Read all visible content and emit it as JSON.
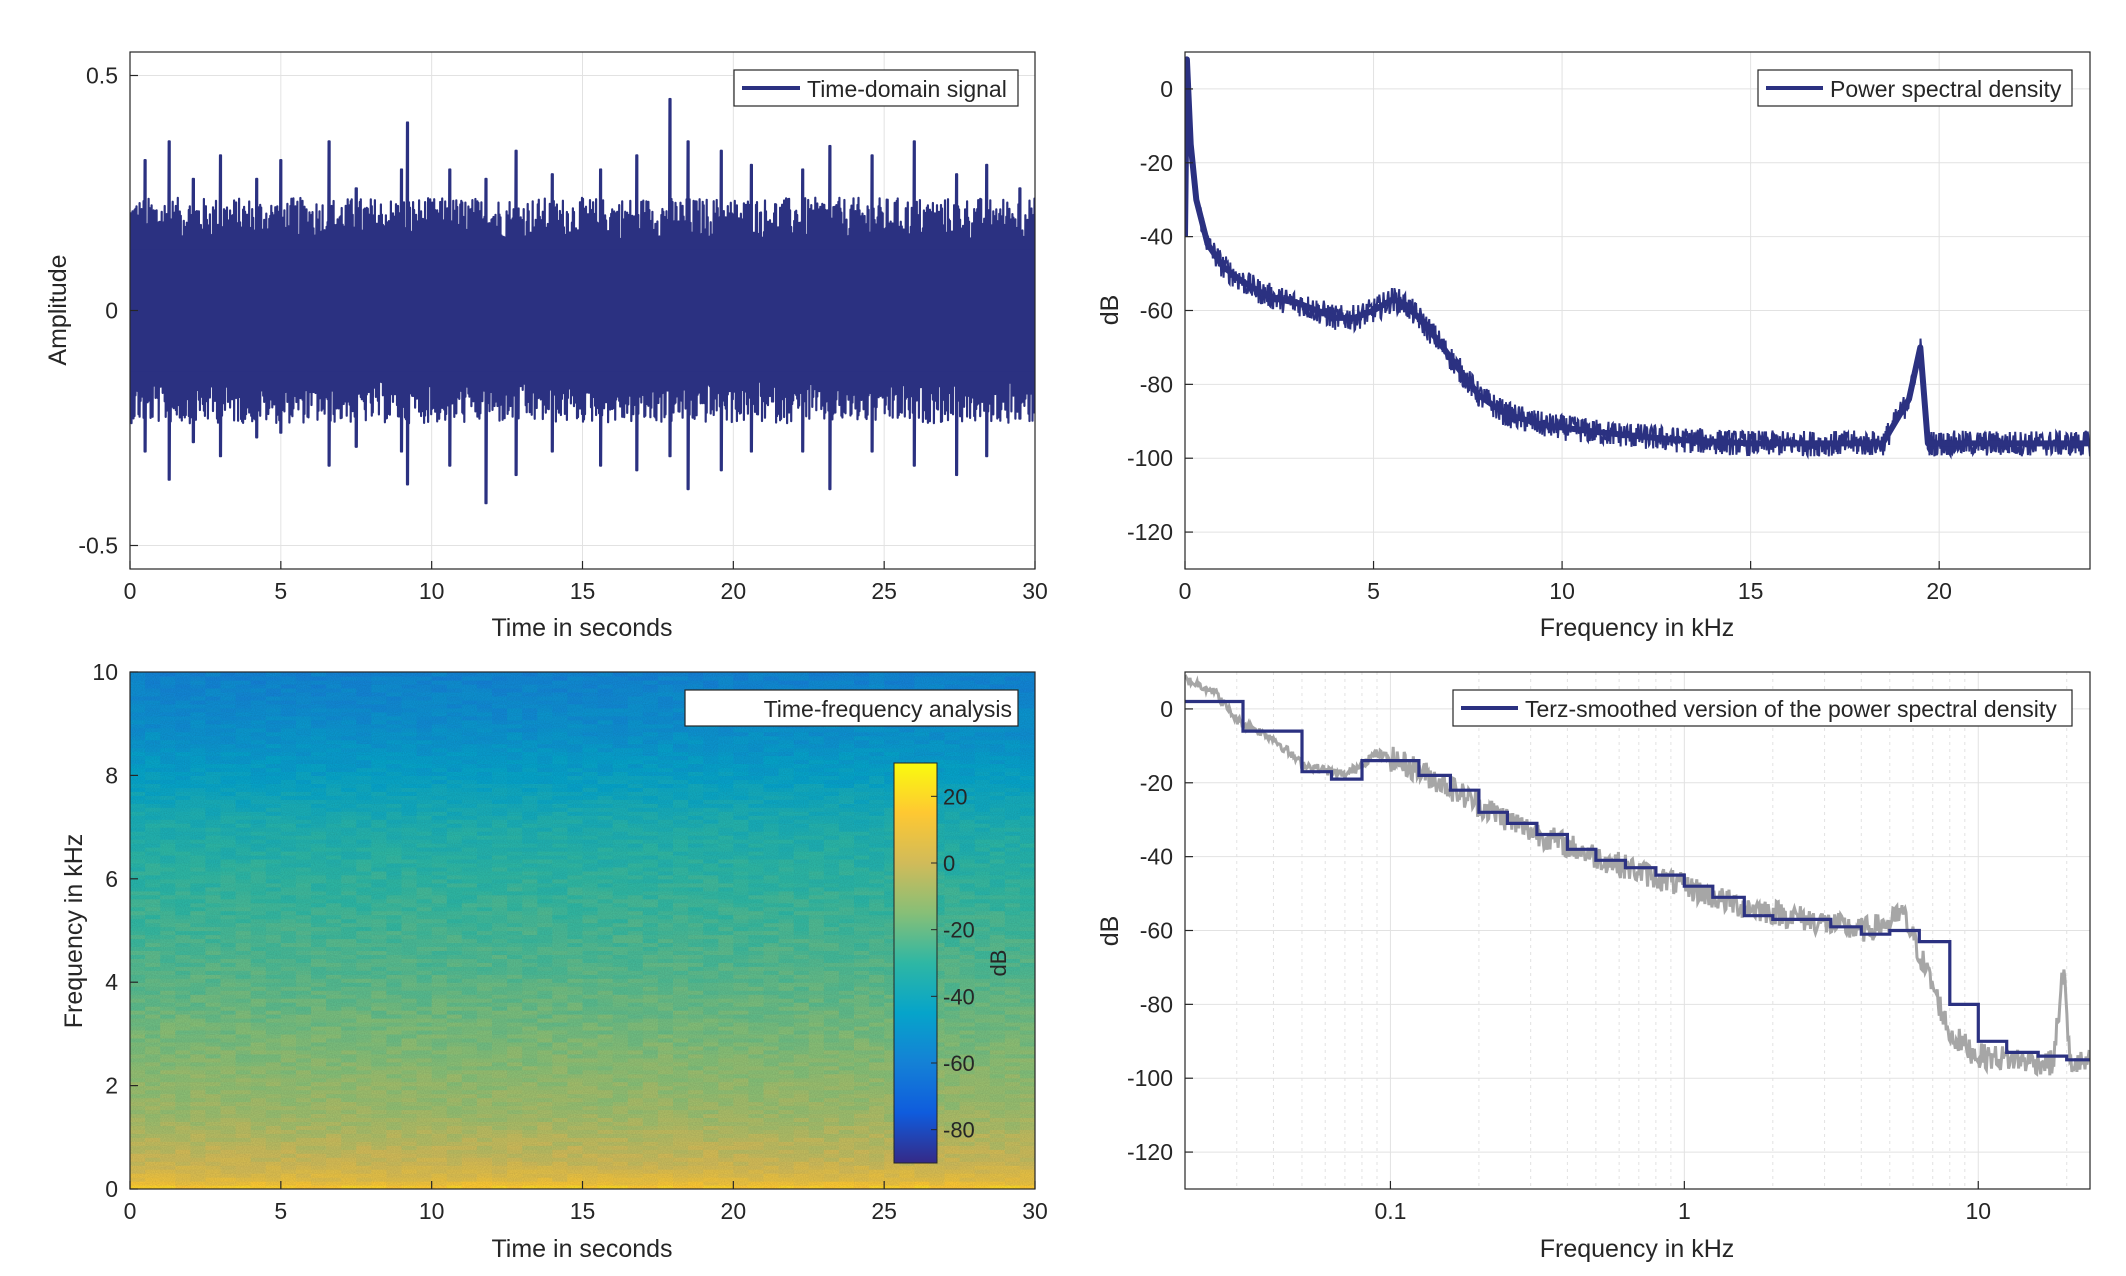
{
  "colors": {
    "series": "#2b3181",
    "grey": "#a6a6a6",
    "axis": "#262626",
    "grid": "#e2e2e2",
    "parula": [
      "#352a87",
      "#0f5cdd",
      "#1481d6",
      "#06a4ca",
      "#2eb7a4",
      "#87bf77",
      "#d1bb59",
      "#fec832",
      "#f9fb0e"
    ]
  },
  "chart_data": [
    {
      "type": "line",
      "title": "",
      "xlabel": "Time in seconds",
      "ylabel": "Amplitude",
      "xlim": [
        0,
        30
      ],
      "ylim": [
        -0.55,
        0.55
      ],
      "xticks": [
        0,
        5,
        10,
        15,
        20,
        25,
        30
      ],
      "yticks": [
        -0.5,
        0,
        0.5
      ],
      "yticklabels": [
        "-0.5",
        "0",
        "0.5"
      ],
      "grid": true,
      "legend": {
        "entries": [
          "Time-domain signal"
        ],
        "location": "top-right"
      },
      "series": [
        {
          "name": "Time-domain signal",
          "x": [
            0.5,
            1.3,
            2.1,
            3.0,
            4.2,
            5.0,
            6.6,
            7.5,
            9.0,
            9.2,
            10.6,
            11.8,
            12.8,
            14.0,
            15.6,
            16.8,
            17.9,
            18.5,
            19.6,
            20.6,
            22.3,
            23.2,
            24.6,
            26.0,
            27.4,
            28.4,
            29.5
          ],
          "min": [
            -0.3,
            -0.36,
            -0.28,
            -0.31,
            -0.27,
            -0.26,
            -0.33,
            -0.29,
            -0.3,
            -0.37,
            -0.33,
            -0.41,
            -0.35,
            -0.3,
            -0.33,
            -0.34,
            -0.31,
            -0.38,
            -0.34,
            -0.3,
            -0.3,
            -0.38,
            -0.3,
            -0.33,
            -0.35,
            -0.31,
            -0.23
          ],
          "max": [
            0.32,
            0.36,
            0.28,
            0.33,
            0.28,
            0.32,
            0.36,
            0.26,
            0.3,
            0.4,
            0.3,
            0.28,
            0.34,
            0.29,
            0.3,
            0.33,
            0.45,
            0.36,
            0.34,
            0.31,
            0.3,
            0.35,
            0.33,
            0.36,
            0.29,
            0.31,
            0.26
          ],
          "typical_range": [
            -0.2,
            0.2
          ]
        }
      ]
    },
    {
      "type": "line",
      "title": "",
      "xlabel": "Frequency in kHz",
      "ylabel": "dB",
      "xlim": [
        0,
        24
      ],
      "ylim": [
        -130,
        10
      ],
      "xticks": [
        0,
        5,
        10,
        15,
        20
      ],
      "yticks": [
        0,
        -20,
        -40,
        -60,
        -80,
        -100,
        -120
      ],
      "grid": true,
      "legend": {
        "entries": [
          "Power spectral density"
        ],
        "location": "top-right"
      },
      "series": [
        {
          "name": "Power spectral density",
          "x": [
            0,
            0.05,
            0.15,
            0.3,
            0.6,
            1,
            1.5,
            2,
            2.5,
            3,
            3.5,
            4,
            4.5,
            5,
            5.5,
            5.8,
            6.2,
            6.7,
            7.2,
            7.8,
            8.5,
            9.5,
            11,
            13,
            15,
            17,
            18.5,
            19.2,
            19.5,
            19.7,
            20,
            21,
            22,
            23,
            24
          ],
          "y": [
            -40,
            8,
            -15,
            -30,
            -42,
            -48,
            -52,
            -55,
            -57,
            -58,
            -60,
            -62,
            -62,
            -60,
            -57,
            -58,
            -62,
            -68,
            -75,
            -83,
            -88,
            -91,
            -93,
            -95,
            -96,
            -96,
            -96,
            -84,
            -70,
            -96,
            -96,
            -96,
            -96,
            -96,
            -96
          ]
        }
      ]
    },
    {
      "type": "heatmap",
      "title": "",
      "xlabel": "Time in seconds",
      "ylabel": "Frequency in kHz",
      "xlim": [
        0,
        30
      ],
      "ylim": [
        0,
        10
      ],
      "xticks": [
        0,
        5,
        10,
        15,
        20,
        25,
        30
      ],
      "yticks": [
        0,
        2,
        4,
        6,
        8,
        10
      ],
      "legend": {
        "entries": [
          "Time-frequency analysis"
        ],
        "location": "top-right"
      },
      "colorbar": {
        "label": "dB",
        "ticks": [
          20,
          0,
          -20,
          -40,
          -60,
          -80
        ],
        "range": [
          -90,
          30
        ]
      },
      "frequency_profile": {
        "freq_khz": [
          0,
          0.15,
          0.5,
          1,
          1.5,
          2,
          3,
          4,
          5,
          6,
          7,
          8,
          9,
          10
        ],
        "level_db": [
          20,
          8,
          0,
          -5,
          -10,
          -12,
          -17,
          -22,
          -26,
          -30,
          -35,
          -45,
          -53,
          -58
        ]
      }
    },
    {
      "type": "line",
      "title": "",
      "xlabel": "Frequency in kHz",
      "ylabel": "dB",
      "xscale": "log",
      "xlim": [
        0.02,
        24
      ],
      "ylim": [
        -130,
        10
      ],
      "xticks": [
        0.1,
        1,
        10
      ],
      "xticklabels": [
        "0.1",
        "1",
        "10"
      ],
      "yticks": [
        0,
        -20,
        -40,
        -60,
        -80,
        -100,
        -120
      ],
      "grid": true,
      "legend": {
        "entries": [
          "Terz-smoothed version of the power spectral density"
        ],
        "location": "top-right"
      },
      "series": [
        {
          "name": "Terz-smoothed version of the power spectral density",
          "x": [
            0.02,
            0.025,
            0.0315,
            0.04,
            0.05,
            0.063,
            0.08,
            0.1,
            0.125,
            0.16,
            0.2,
            0.25,
            0.315,
            0.4,
            0.5,
            0.63,
            0.8,
            1.0,
            1.25,
            1.6,
            2.0,
            2.5,
            3.15,
            4.0,
            5.0,
            6.3,
            8.0,
            10.0,
            12.5,
            16.0,
            20.0
          ],
          "y": [
            2,
            2,
            -6,
            -6,
            -17,
            -19,
            -14,
            -14,
            -18,
            -22,
            -28,
            -31,
            -34,
            -38,
            -41,
            -43,
            -45,
            -48,
            -51,
            -56,
            -57,
            -57,
            -59,
            -61,
            -60,
            -63,
            -80,
            -90,
            -93,
            -94,
            -95
          ]
        },
        {
          "name": "",
          "color": "#a6a6a6",
          "x": [
            0.02,
            0.025,
            0.03,
            0.04,
            0.05,
            0.07,
            0.09,
            0.12,
            0.15,
            0.2,
            0.3,
            0.5,
            0.7,
            1.0,
            1.5,
            2.0,
            3.0,
            4.0,
            5.0,
            5.5,
            6.0,
            7.0,
            8.0,
            10.0,
            14.0,
            18.0,
            19.5,
            20.5,
            24.0
          ],
          "y": [
            8,
            5,
            -3,
            -8,
            -15,
            -18,
            -12,
            -16,
            -20,
            -26,
            -33,
            -40,
            -44,
            -48,
            -53,
            -55,
            -58,
            -60,
            -58,
            -55,
            -62,
            -75,
            -88,
            -94,
            -95,
            -96,
            -70,
            -96,
            -96
          ]
        }
      ]
    }
  ]
}
